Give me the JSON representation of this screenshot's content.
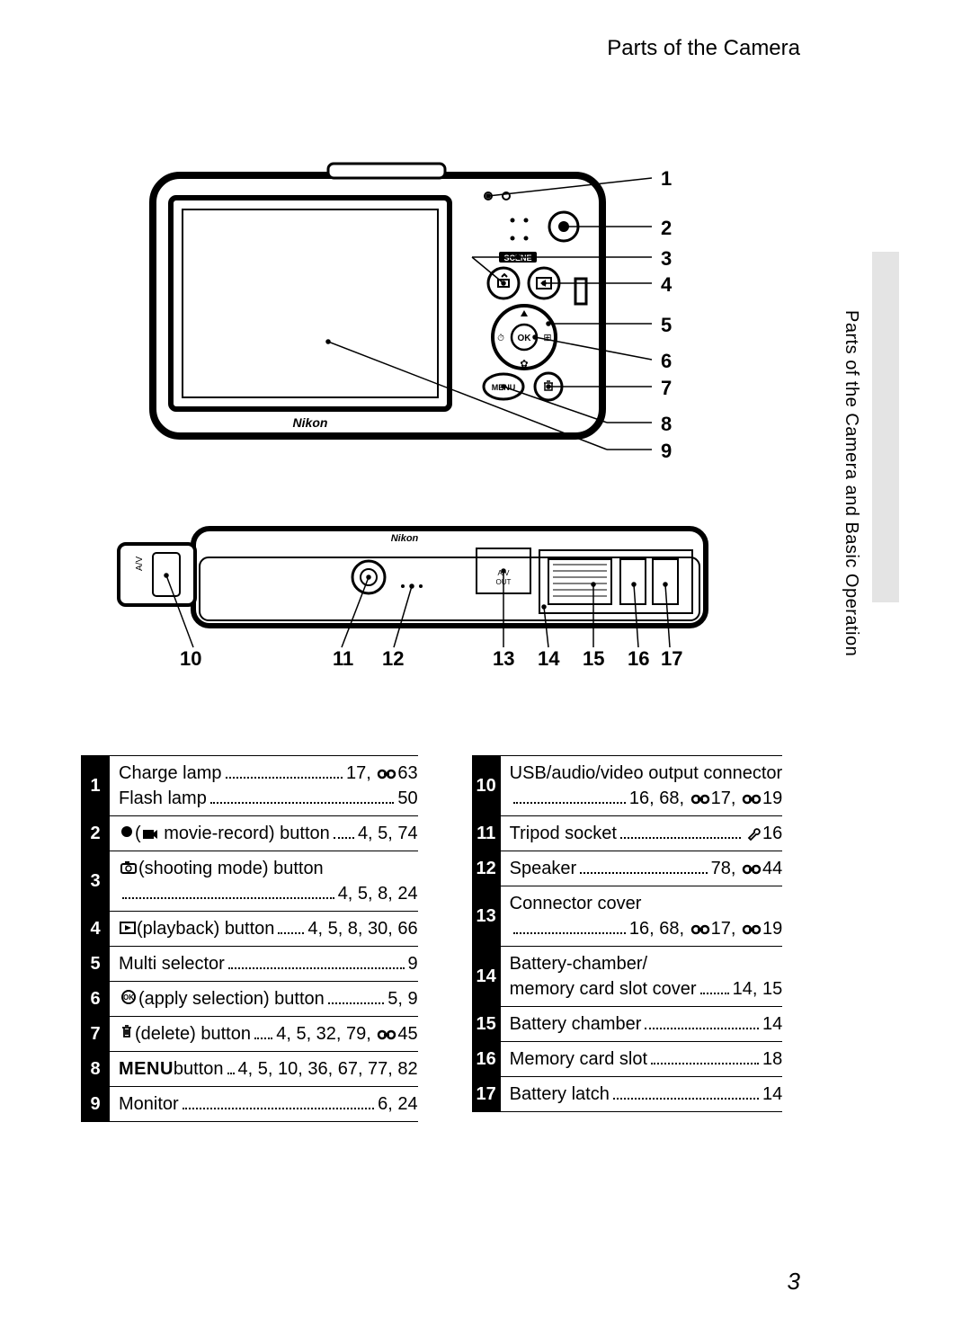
{
  "header": {
    "title": "Parts of the Camera"
  },
  "sidebar": {
    "label": "Parts of the Camera and Basic Operation"
  },
  "callouts_back": [
    "1",
    "2",
    "3",
    "4",
    "5",
    "6",
    "7",
    "8",
    "9"
  ],
  "callouts_bottom": [
    "10",
    "11",
    "12",
    "13",
    "14",
    "15",
    "16",
    "17"
  ],
  "parts_left": [
    {
      "num": "1",
      "lines": [
        {
          "label": "Charge lamp",
          "refs": "17, 🔗63"
        },
        {
          "label": "Flash lamp",
          "refs": "50"
        }
      ]
    },
    {
      "num": "2",
      "lines": [
        {
          "pre_icon": "record",
          "label": "(🎬 movie-record) button",
          "refs": "4, 5, 74"
        }
      ]
    },
    {
      "num": "3",
      "lines": [
        {
          "pre_icon": "camera",
          "label": "(shooting mode) button",
          "refs_below": "4, 5, 8, 24"
        }
      ]
    },
    {
      "num": "4",
      "lines": [
        {
          "pre_icon": "play",
          "label": "(playback) button",
          "refs": "4, 5, 8, 30, 66"
        }
      ]
    },
    {
      "num": "5",
      "lines": [
        {
          "label": "Multi selector",
          "refs": "9"
        }
      ]
    },
    {
      "num": "6",
      "lines": [
        {
          "pre_icon": "ok",
          "label": "(apply selection) button",
          "refs": "5, 9"
        }
      ]
    },
    {
      "num": "7",
      "lines": [
        {
          "pre_icon": "trash",
          "label": "(delete) button",
          "refs": "4, 5, 32, 79, 🔗45"
        }
      ]
    },
    {
      "num": "8",
      "lines": [
        {
          "pre_text": "MENU",
          "label": " button",
          "refs": "4, 5, 10, 36, 67, 77, 82"
        }
      ]
    },
    {
      "num": "9",
      "lines": [
        {
          "label": "Monitor",
          "refs": "6, 24"
        }
      ]
    }
  ],
  "parts_right": [
    {
      "num": "10",
      "lines": [
        {
          "label": "USB/audio/video output connector",
          "refs_below": "16, 68, 🔗17, 🔗19"
        }
      ]
    },
    {
      "num": "11",
      "lines": [
        {
          "label": "Tripod socket",
          "refs": "🔧16"
        }
      ]
    },
    {
      "num": "12",
      "lines": [
        {
          "label": "Speaker",
          "refs": "78, 🔗44"
        }
      ]
    },
    {
      "num": "13",
      "lines": [
        {
          "label": "Connector cover",
          "refs_below": "16, 68, 🔗17, 🔗19"
        }
      ]
    },
    {
      "num": "14",
      "lines": [
        {
          "label": "Battery-chamber/",
          "nobreak": true
        },
        {
          "label": "memory card slot cover",
          "refs": "14, 15"
        }
      ]
    },
    {
      "num": "15",
      "lines": [
        {
          "label": "Battery chamber",
          "refs": "14"
        }
      ]
    },
    {
      "num": "16",
      "lines": [
        {
          "label": "Memory card slot",
          "refs": "18"
        }
      ]
    },
    {
      "num": "17",
      "lines": [
        {
          "label": "Battery latch",
          "refs": "14"
        }
      ]
    }
  ],
  "page_number": "3"
}
